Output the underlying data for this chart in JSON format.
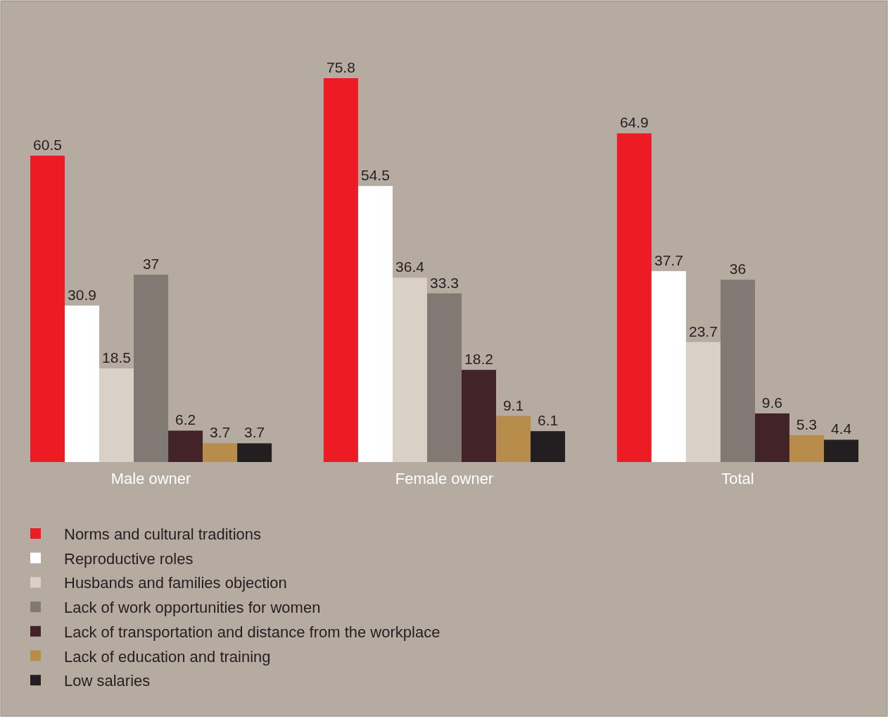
{
  "chart_data": {
    "type": "bar",
    "categories": [
      "Male owner",
      "Female owner",
      "Total"
    ],
    "series": [
      {
        "name": "Norms and cultural traditions",
        "color": "#ed1c24",
        "values": [
          60.5,
          75.8,
          64.9
        ]
      },
      {
        "name": "Reproductive roles",
        "color": "#ffffff",
        "values": [
          30.9,
          54.5,
          37.7
        ]
      },
      {
        "name": "Husbands and families objection",
        "color": "#d9d1c6",
        "values": [
          18.5,
          36.4,
          23.7
        ]
      },
      {
        "name": "Lack of work opportunities for women",
        "color": "#807a73",
        "values": [
          37,
          33.3,
          36
        ]
      },
      {
        "name": "Lack of transportation and distance from the workplace",
        "color": "#422428",
        "values": [
          6.2,
          18.2,
          9.6
        ]
      },
      {
        "name": "Lack of education and training",
        "color": "#b88c4a",
        "values": [
          3.7,
          9.1,
          5.3
        ]
      },
      {
        "name": "Low salaries",
        "color": "#231f20",
        "values": [
          3.7,
          6.1,
          4.4
        ]
      }
    ],
    "data_labels": true,
    "legend": "bottom",
    "relative": false
  }
}
